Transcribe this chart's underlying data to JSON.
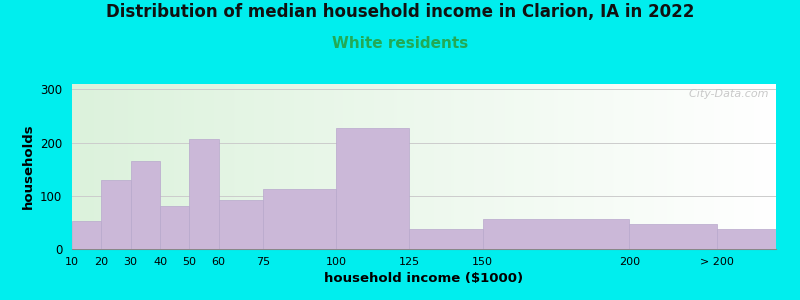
{
  "title": "Distribution of median household income in Clarion, IA in 2022",
  "subtitle": "White residents",
  "xlabel": "household income ($1000)",
  "ylabel": "households",
  "title_fontsize": 12,
  "subtitle_fontsize": 11,
  "subtitle_color": "#22aa55",
  "background_outer": "#00eeee",
  "bar_color": "#cbb8d8",
  "bar_edge_color": "#b8a8cc",
  "ylim": [
    0,
    310
  ],
  "yticks": [
    0,
    100,
    200,
    300
  ],
  "watermark": "  City-Data.com",
  "bar_left_edges": [
    10,
    20,
    30,
    40,
    50,
    60,
    75,
    100,
    125,
    150,
    200,
    230
  ],
  "bar_widths": [
    10,
    10,
    10,
    10,
    10,
    15,
    25,
    25,
    25,
    50,
    30,
    20
  ],
  "values": [
    52,
    130,
    165,
    80,
    207,
    93,
    112,
    228,
    38,
    57,
    47,
    38
  ],
  "xtick_positions": [
    10,
    20,
    30,
    40,
    50,
    60,
    75,
    100,
    125,
    150,
    200,
    230
  ],
  "xtick_labels": [
    "10",
    "20",
    "30",
    "40",
    "50",
    "60",
    "75",
    "100",
    "125",
    "150",
    "200",
    "> 200"
  ],
  "xlim": [
    10,
    250
  ]
}
